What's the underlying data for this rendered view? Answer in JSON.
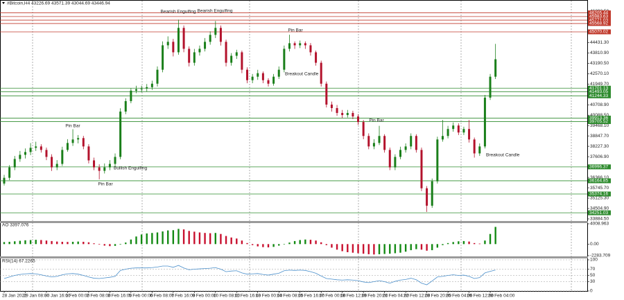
{
  "chart_data": [
    {
      "type": "candlestick",
      "title": "#Bitcoin,H4 43226.69 43571.39 43044.69 43446.94",
      "up_color": "#1a7f1a",
      "down_color": "#b3122c",
      "ylim": [
        33800,
        46850
      ],
      "yticks": [
        {
          "value": 46292.5,
          "label": "46292.50"
        },
        {
          "value": 45672.1,
          "label": "45672.10"
        },
        {
          "value": 45051.7,
          "label": "45051.70"
        },
        {
          "value": 44431.3,
          "label": "44431.30"
        },
        {
          "value": 43810.9,
          "label": "43810.90"
        },
        {
          "value": 43190.5,
          "label": "43190.50"
        },
        {
          "value": 42570.1,
          "label": "42570.10"
        },
        {
          "value": 41949.7,
          "label": "41949.70"
        },
        {
          "value": 41329.3,
          "label": "41329.30"
        },
        {
          "value": 40708.9,
          "label": "40708.90"
        },
        {
          "value": 40088.5,
          "label": "40088.50"
        },
        {
          "value": 39468.1,
          "label": "39468.10"
        },
        {
          "value": 38847.7,
          "label": "38847.70"
        },
        {
          "value": 38227.3,
          "label": "38227.30"
        },
        {
          "value": 37606.9,
          "label": "37606.90"
        },
        {
          "value": 36986.5,
          "label": "36986.50"
        },
        {
          "value": 36366.1,
          "label": "36366.10"
        },
        {
          "value": 35745.7,
          "label": "35745.70"
        },
        {
          "value": 35125.3,
          "label": "35125.30"
        },
        {
          "value": 34504.9,
          "label": "34504.90"
        },
        {
          "value": 33884.5,
          "label": "33884.50"
        }
      ],
      "levels": [
        {
          "value": 46205.44,
          "color": "#c0392b"
        },
        {
          "value": 45983.63,
          "color": "#c0392b"
        },
        {
          "value": 45771.03,
          "color": "#c0392b"
        },
        {
          "value": 45568.92,
          "color": "#c0392b"
        },
        {
          "value": 45070.02,
          "color": "#c0392b"
        },
        {
          "value": 41701.13,
          "color": "#2e8b2e"
        },
        {
          "value": 41493.05,
          "color": "#2e8b2e"
        },
        {
          "value": 41244.33,
          "color": "#2e8b2e"
        },
        {
          "value": 39913.36,
          "color": "#2e8b2e"
        },
        {
          "value": 39705.52,
          "color": "#2e8b2e"
        },
        {
          "value": 36996.37,
          "color": "#2e8b2e"
        },
        {
          "value": 36164.85,
          "color": "#2e8b2e"
        },
        {
          "value": 35374.16,
          "color": "#2e8b2e"
        },
        {
          "value": 34251.03,
          "color": "#2e8b2e"
        }
      ],
      "annotations": [
        "Bearish Engulfing",
        "Bearish Engulfing",
        "Pin Bar",
        "Breakout Candle",
        "Pin Bar",
        "Bullish Engulfing",
        "Pin Bar",
        "Pin Bar",
        "Breakout Candle"
      ],
      "x": [
        "28 Jan 2022",
        null,
        null,
        null,
        "29 Jan 08:00",
        null,
        null,
        null,
        "30 Jan 16:00",
        null,
        null,
        null,
        "1 Feb 00:00",
        null,
        null,
        null,
        "2 Feb 08:00",
        null,
        null,
        null,
        "3 Feb 16:00",
        null,
        null,
        null,
        "5 Feb 00:00",
        null,
        null,
        null,
        "6 Feb 08:00",
        null,
        null,
        null,
        "7 Feb 16:00",
        null,
        null,
        null,
        "9 Feb 00:00",
        null,
        null,
        null,
        "10 Feb 08:00",
        null,
        null,
        null,
        "11 Feb 16:00",
        null,
        null,
        null,
        "13 Feb 00:00",
        null,
        null,
        null,
        "14 Feb 08:00",
        null,
        null,
        null,
        "15 Feb 16:00",
        null,
        null,
        null,
        "17 Feb 00:00",
        null,
        null,
        null,
        "18 Feb 12:00",
        null,
        null,
        null,
        "19 Feb 20:00",
        null,
        null,
        null,
        "21 Feb 04:00",
        null,
        null,
        null,
        "22 Feb 12:00",
        null,
        null,
        null,
        "23 Feb 20:00",
        null,
        null,
        null,
        "25 Feb 04:00",
        null,
        null,
        null,
        "26 Feb 12:00",
        null,
        null,
        null,
        "28 Feb 04:00",
        null
      ],
      "ohlc": [
        [
          36000,
          36520,
          35880,
          36342
        ],
        [
          36342,
          37100,
          36200,
          36967
        ],
        [
          36967,
          37650,
          36800,
          37468
        ],
        [
          37468,
          37950,
          37300,
          37718
        ],
        [
          37718,
          38100,
          37500,
          37885
        ],
        [
          37885,
          38420,
          37700,
          38135
        ],
        [
          38135,
          38500,
          37950,
          38218
        ],
        [
          38218,
          38350,
          37850,
          38009
        ],
        [
          38009,
          38150,
          37400,
          37592
        ],
        [
          37592,
          37750,
          36750,
          36967
        ],
        [
          36967,
          37400,
          36800,
          37175
        ],
        [
          37175,
          38200,
          37050,
          38009
        ],
        [
          38009,
          38650,
          37900,
          38426
        ],
        [
          38426,
          39250,
          38250,
          38635
        ],
        [
          38635,
          38900,
          38400,
          38718
        ],
        [
          38718,
          38850,
          38050,
          38218
        ],
        [
          38218,
          38350,
          37200,
          37384
        ],
        [
          37384,
          37550,
          36800,
          36967
        ],
        [
          36967,
          37150,
          36250,
          36759
        ],
        [
          36759,
          37200,
          36600,
          36967
        ],
        [
          36967,
          37400,
          36800,
          37175
        ],
        [
          37175,
          37800,
          37000,
          37592
        ],
        [
          37592,
          40500,
          37450,
          40303
        ],
        [
          40303,
          41100,
          40150,
          40928
        ],
        [
          40928,
          41700,
          40800,
          41554
        ],
        [
          41554,
          41850,
          41400,
          41637
        ],
        [
          41637,
          41850,
          41450,
          41679
        ],
        [
          41679,
          41950,
          41500,
          41762
        ],
        [
          41762,
          42150,
          41600,
          41971
        ],
        [
          41971,
          43000,
          41800,
          42805
        ],
        [
          42805,
          44500,
          42650,
          44265
        ],
        [
          44265,
          44800,
          44050,
          44473
        ],
        [
          44473,
          44650,
          43600,
          43848
        ],
        [
          43848,
          45800,
          43700,
          45307
        ],
        [
          45307,
          45450,
          43850,
          44056
        ],
        [
          44056,
          44200,
          43000,
          43222
        ],
        [
          43222,
          44050,
          43050,
          43848
        ],
        [
          43848,
          44250,
          43650,
          44056
        ],
        [
          44056,
          44700,
          43900,
          44473
        ],
        [
          44473,
          45100,
          44300,
          44890
        ],
        [
          44890,
          45720,
          44700,
          45307
        ],
        [
          45307,
          45450,
          44250,
          44473
        ],
        [
          44473,
          44600,
          43000,
          43222
        ],
        [
          43222,
          43800,
          43050,
          43639
        ],
        [
          43639,
          44000,
          43450,
          43848
        ],
        [
          43848,
          43950,
          42600,
          42805
        ],
        [
          42805,
          42950,
          42000,
          42180
        ],
        [
          42180,
          42550,
          42000,
          42388
        ],
        [
          42388,
          42800,
          42200,
          42597
        ],
        [
          42597,
          42700,
          42000,
          42180
        ],
        [
          42180,
          42300,
          41800,
          41971
        ],
        [
          41971,
          42550,
          41850,
          42388
        ],
        [
          42388,
          43000,
          42250,
          42805
        ],
        [
          42805,
          44250,
          42650,
          44056
        ],
        [
          44056,
          44900,
          43900,
          44390
        ],
        [
          44390,
          44500,
          44050,
          44265
        ],
        [
          44265,
          44550,
          44100,
          44390
        ],
        [
          44390,
          44500,
          44050,
          44265
        ],
        [
          44265,
          44400,
          43650,
          43848
        ],
        [
          43848,
          43950,
          43050,
          43222
        ],
        [
          43222,
          43350,
          41800,
          41971
        ],
        [
          41971,
          42100,
          40550,
          40720
        ],
        [
          40720,
          40900,
          40300,
          40512
        ],
        [
          40512,
          40700,
          40050,
          40220
        ],
        [
          40220,
          40400,
          39900,
          40095
        ],
        [
          40095,
          40400,
          39950,
          40220
        ],
        [
          40220,
          40350,
          39850,
          40011
        ],
        [
          40011,
          40150,
          39500,
          39678
        ],
        [
          39678,
          39800,
          38650,
          38844
        ],
        [
          38844,
          39000,
          38050,
          38218
        ],
        [
          38218,
          38650,
          38050,
          38426
        ],
        [
          38426,
          39450,
          38300,
          38844
        ],
        [
          38844,
          38950,
          37850,
          38009
        ],
        [
          38009,
          38150,
          36800,
          36967
        ],
        [
          36967,
          37750,
          36800,
          37592
        ],
        [
          37592,
          38200,
          37450,
          38009
        ],
        [
          38009,
          38400,
          37850,
          38218
        ],
        [
          38218,
          39000,
          38050,
          38844
        ],
        [
          38844,
          38950,
          37850,
          38009
        ],
        [
          38009,
          38150,
          35550,
          35716
        ],
        [
          35716,
          35850,
          34300,
          34674
        ],
        [
          34674,
          36300,
          34550,
          36133
        ],
        [
          36133,
          38800,
          36000,
          38635
        ],
        [
          38635,
          39800,
          38500,
          38844
        ],
        [
          38844,
          39450,
          38700,
          39261
        ],
        [
          39261,
          39650,
          39100,
          39469
        ],
        [
          39469,
          39600,
          38900,
          39052
        ],
        [
          39052,
          39400,
          38900,
          39261
        ],
        [
          39261,
          39800,
          38450,
          38635
        ],
        [
          38635,
          38750,
          37550,
          37801
        ],
        [
          37801,
          38400,
          37650,
          38218
        ],
        [
          38218,
          41300,
          38100,
          41137
        ],
        [
          41137,
          42550,
          41000,
          42388
        ],
        [
          42388,
          44350,
          42250,
          43431
        ]
      ]
    },
    {
      "type": "bar",
      "title": "AO 3397.076",
      "up_color": "#138a13",
      "down_color": "#c8102e",
      "ylim": [
        -2283.709,
        4008.963
      ],
      "yticks": [
        4008.963,
        {
          "value": 0,
          "label": "0.00"
        },
        -2283.709
      ],
      "values": [
        400,
        450,
        550,
        650,
        750,
        800,
        850,
        800,
        700,
        600,
        500,
        450,
        420,
        450,
        500,
        450,
        350,
        150,
        -100,
        -300,
        -400,
        -350,
        -100,
        300,
        900,
        1500,
        1900,
        2100,
        2200,
        2300,
        2500,
        2700,
        2750,
        3000,
        2900,
        2600,
        2450,
        2300,
        2200,
        2150,
        2200,
        2000,
        1600,
        1300,
        1100,
        700,
        200,
        -200,
        -450,
        -600,
        -650,
        -550,
        -300,
        0,
        300,
        600,
        800,
        900,
        850,
        700,
        350,
        -200,
        -700,
        -1100,
        -1400,
        -1600,
        -1700,
        -1800,
        -1900,
        -2000,
        -2050,
        -2000,
        -1950,
        -1900,
        -1800,
        -1700,
        -1500,
        -1200,
        -1000,
        -1100,
        -1300,
        -1200,
        -700,
        -200,
        200,
        400,
        550,
        600,
        500,
        200,
        100,
        700,
        2000,
        3397.076
      ]
    },
    {
      "type": "line",
      "title": "RSI(14) 67.2265",
      "color": "#4a8fcb",
      "grid": true,
      "ylim": [
        0,
        100
      ],
      "yticks": [
        100,
        70,
        50,
        30,
        0
      ],
      "values": [
        40,
        45,
        50,
        53,
        55,
        56,
        55,
        52,
        48,
        45,
        47,
        52,
        55,
        56,
        54,
        50,
        45,
        41,
        40,
        42,
        44,
        47,
        66,
        70,
        73,
        74,
        74,
        74,
        75,
        77,
        80,
        80,
        76,
        82,
        74,
        68,
        70,
        71,
        72,
        73,
        75,
        70,
        62,
        64,
        65,
        58,
        54,
        55,
        56,
        53,
        51,
        54,
        57,
        65,
        67,
        66,
        67,
        66,
        62,
        57,
        48,
        40,
        38,
        36,
        35,
        36,
        35,
        33,
        29,
        27,
        30,
        33,
        30,
        25,
        31,
        35,
        37,
        41,
        36,
        25,
        20,
        32,
        45,
        47,
        50,
        52,
        50,
        51,
        47,
        40,
        43,
        58,
        63,
        67.2265
      ]
    }
  ]
}
